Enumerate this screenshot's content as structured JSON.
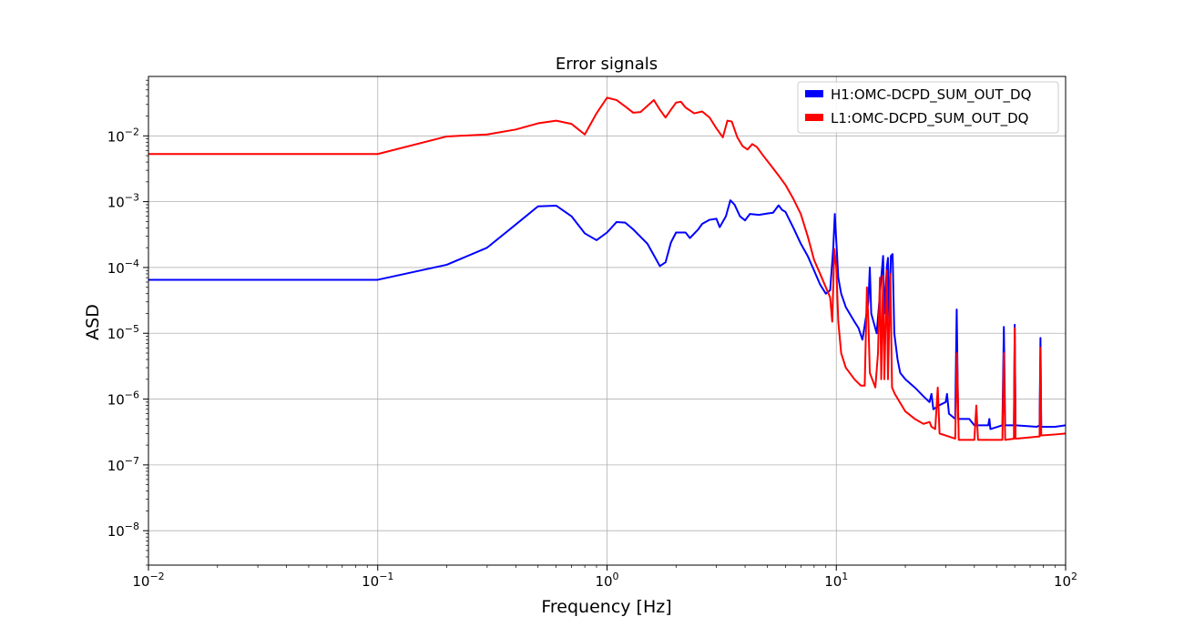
{
  "chart_data": {
    "type": "line",
    "title": "Error signals",
    "xlabel": "Frequency [Hz]",
    "ylabel": "ASD",
    "x_scale": "log",
    "y_scale": "log",
    "xlim": [
      0.01,
      100
    ],
    "ylim": [
      3e-09,
      0.08
    ],
    "grid": true,
    "legend_position": "top-right",
    "x_ticks": [
      {
        "value": 0.01,
        "base": "10",
        "exp": "−2"
      },
      {
        "value": 0.1,
        "base": "10",
        "exp": "−1"
      },
      {
        "value": 1,
        "base": "10",
        "exp": "0"
      },
      {
        "value": 10,
        "base": "10",
        "exp": "1"
      },
      {
        "value": 100,
        "base": "10",
        "exp": "2"
      }
    ],
    "y_ticks": [
      {
        "value": 1e-08,
        "base": "10",
        "exp": "−8"
      },
      {
        "value": 1e-07,
        "base": "10",
        "exp": "−7"
      },
      {
        "value": 1e-06,
        "base": "10",
        "exp": "−6"
      },
      {
        "value": 1e-05,
        "base": "10",
        "exp": "−5"
      },
      {
        "value": 0.0001,
        "base": "10",
        "exp": "−4"
      },
      {
        "value": 0.001,
        "base": "10",
        "exp": "−3"
      },
      {
        "value": 0.01,
        "base": "10",
        "exp": "−2"
      }
    ],
    "series": [
      {
        "name": "H1:OMC-DCPD_SUM_OUT_DQ",
        "color": "#0000ff",
        "points": [
          [
            0.01,
            6.5e-05
          ],
          [
            0.1,
            6.5e-05
          ],
          [
            0.2,
            0.00011
          ],
          [
            0.3,
            0.0002
          ],
          [
            0.4,
            0.00045
          ],
          [
            0.5,
            0.00085
          ],
          [
            0.6,
            0.00087
          ],
          [
            0.7,
            0.0006
          ],
          [
            0.8,
            0.00033
          ],
          [
            0.9,
            0.00026
          ],
          [
            1.0,
            0.00034
          ],
          [
            1.1,
            0.00049
          ],
          [
            1.2,
            0.00048
          ],
          [
            1.3,
            0.00038
          ],
          [
            1.5,
            0.00023
          ],
          [
            1.7,
            0.000105
          ],
          [
            1.8,
            0.00012
          ],
          [
            1.9,
            0.00024
          ],
          [
            2.0,
            0.00034
          ],
          [
            2.2,
            0.00034
          ],
          [
            2.3,
            0.00028
          ],
          [
            2.5,
            0.00038
          ],
          [
            2.6,
            0.00046
          ],
          [
            2.8,
            0.00053
          ],
          [
            3.0,
            0.00055
          ],
          [
            3.1,
            0.00041
          ],
          [
            3.3,
            0.0006
          ],
          [
            3.45,
            0.00105
          ],
          [
            3.6,
            0.0009
          ],
          [
            3.8,
            0.0006
          ],
          [
            4.0,
            0.00052
          ],
          [
            4.2,
            0.00065
          ],
          [
            4.6,
            0.00063
          ],
          [
            5.0,
            0.00066
          ],
          [
            5.3,
            0.00068
          ],
          [
            5.6,
            0.00088
          ],
          [
            5.8,
            0.00075
          ],
          [
            6.0,
            0.0007
          ],
          [
            6.5,
            0.0004
          ],
          [
            7.0,
            0.00023
          ],
          [
            7.5,
            0.00015
          ],
          [
            8.0,
            9e-05
          ],
          [
            8.5,
            5.5e-05
          ],
          [
            9.0,
            4e-05
          ],
          [
            9.4,
            4.5e-05
          ],
          [
            9.7,
            0.0002
          ],
          [
            9.85,
            0.00065
          ],
          [
            10.0,
            0.00025
          ],
          [
            10.2,
            7e-05
          ],
          [
            10.5,
            4e-05
          ],
          [
            11.0,
            2.5e-05
          ],
          [
            12.0,
            1.5e-05
          ],
          [
            12.5,
            1.2e-05
          ],
          [
            13.0,
            8e-06
          ],
          [
            13.8,
            3e-05
          ],
          [
            14.0,
            0.0001
          ],
          [
            14.2,
            2e-05
          ],
          [
            15.0,
            1e-05
          ],
          [
            15.8,
            9e-05
          ],
          [
            16.0,
            0.00015
          ],
          [
            16.2,
            2e-05
          ],
          [
            16.6,
            0.0001
          ],
          [
            16.8,
            0.00014
          ],
          [
            17.0,
            1.5e-05
          ],
          [
            17.3,
            0.00015
          ],
          [
            17.6,
            0.00016
          ],
          [
            17.9,
            1e-05
          ],
          [
            18.5,
            4e-06
          ],
          [
            19.0,
            2.5e-06
          ],
          [
            20.0,
            2e-06
          ],
          [
            22.0,
            1.5e-06
          ],
          [
            24.0,
            1.1e-06
          ],
          [
            25.5,
            9e-07
          ],
          [
            26.0,
            1.2e-06
          ],
          [
            26.5,
            7e-07
          ],
          [
            28.0,
            8e-07
          ],
          [
            30.0,
            9e-07
          ],
          [
            30.4,
            1.2e-06
          ],
          [
            31.0,
            6e-07
          ],
          [
            33.0,
            5e-07
          ],
          [
            33.5,
            2.3e-05
          ],
          [
            34.0,
            5e-07
          ],
          [
            38.0,
            5e-07
          ],
          [
            40.0,
            4e-07
          ],
          [
            46.0,
            4e-07
          ],
          [
            46.5,
            5e-07
          ],
          [
            47.0,
            3.5e-07
          ],
          [
            53.0,
            4e-07
          ],
          [
            53.8,
            1.25e-05
          ],
          [
            54.5,
            4e-07
          ],
          [
            59.5,
            4e-07
          ],
          [
            60.0,
            1.35e-05
          ],
          [
            60.5,
            4e-07
          ],
          [
            75.0,
            3.8e-07
          ],
          [
            77.0,
            4e-07
          ],
          [
            77.7,
            8.5e-06
          ],
          [
            78.3,
            3.8e-07
          ],
          [
            90.0,
            3.8e-07
          ],
          [
            100.0,
            4e-07
          ]
        ]
      },
      {
        "name": "L1:OMC-DCPD_SUM_OUT_DQ",
        "color": "#ff0000",
        "points": [
          [
            0.01,
            0.0053
          ],
          [
            0.1,
            0.0053
          ],
          [
            0.2,
            0.0098
          ],
          [
            0.3,
            0.0105
          ],
          [
            0.4,
            0.0125
          ],
          [
            0.5,
            0.0155
          ],
          [
            0.6,
            0.017
          ],
          [
            0.7,
            0.0152
          ],
          [
            0.8,
            0.0105
          ],
          [
            0.9,
            0.022
          ],
          [
            1.0,
            0.038
          ],
          [
            1.1,
            0.035
          ],
          [
            1.2,
            0.028
          ],
          [
            1.3,
            0.0225
          ],
          [
            1.4,
            0.023
          ],
          [
            1.6,
            0.035
          ],
          [
            1.7,
            0.025
          ],
          [
            1.8,
            0.019
          ],
          [
            1.9,
            0.025
          ],
          [
            2.0,
            0.032
          ],
          [
            2.1,
            0.033
          ],
          [
            2.2,
            0.027
          ],
          [
            2.4,
            0.022
          ],
          [
            2.6,
            0.0235
          ],
          [
            2.8,
            0.019
          ],
          [
            3.0,
            0.013
          ],
          [
            3.2,
            0.0095
          ],
          [
            3.35,
            0.017
          ],
          [
            3.5,
            0.0165
          ],
          [
            3.7,
            0.0095
          ],
          [
            3.9,
            0.007
          ],
          [
            4.1,
            0.0062
          ],
          [
            4.3,
            0.0075
          ],
          [
            4.5,
            0.0068
          ],
          [
            4.8,
            0.005
          ],
          [
            5.2,
            0.0035
          ],
          [
            5.6,
            0.0025
          ],
          [
            6.0,
            0.0018
          ],
          [
            6.5,
            0.0011
          ],
          [
            7.0,
            0.00065
          ],
          [
            7.5,
            0.0003
          ],
          [
            8.0,
            0.00013
          ],
          [
            8.5,
            8e-05
          ],
          [
            9.0,
            5e-05
          ],
          [
            9.4,
            3.5e-05
          ],
          [
            9.6,
            1.5e-05
          ],
          [
            9.8,
            0.00019
          ],
          [
            10.0,
            0.0001
          ],
          [
            10.2,
            1.5e-05
          ],
          [
            10.5,
            5e-06
          ],
          [
            11.0,
            3e-06
          ],
          [
            12.0,
            2e-06
          ],
          [
            12.8,
            1.6e-06
          ],
          [
            13.3,
            1.6e-06
          ],
          [
            13.6,
            5e-05
          ],
          [
            13.8,
            1.5e-05
          ],
          [
            14.0,
            2.5e-06
          ],
          [
            14.8,
            1.5e-06
          ],
          [
            15.2,
            5e-06
          ],
          [
            15.5,
            7e-05
          ],
          [
            15.7,
            2e-06
          ],
          [
            16.0,
            7.5e-05
          ],
          [
            16.2,
            2e-06
          ],
          [
            16.6,
            9e-05
          ],
          [
            16.8,
            2e-06
          ],
          [
            17.2,
            8e-05
          ],
          [
            17.5,
            1.5e-06
          ],
          [
            18.0,
            1.2e-06
          ],
          [
            20.0,
            6.5e-07
          ],
          [
            22.0,
            5e-07
          ],
          [
            24.0,
            4.2e-07
          ],
          [
            25.5,
            4.5e-07
          ],
          [
            26.0,
            3.8e-07
          ],
          [
            27.0,
            3.5e-07
          ],
          [
            27.7,
            1.5e-06
          ],
          [
            28.2,
            3e-07
          ],
          [
            30.0,
            2.8e-07
          ],
          [
            33.0,
            2.5e-07
          ],
          [
            33.6,
            5e-06
          ],
          [
            34.2,
            2.4e-07
          ],
          [
            40.0,
            2.4e-07
          ],
          [
            40.8,
            8e-07
          ],
          [
            41.5,
            2.4e-07
          ],
          [
            53.0,
            2.4e-07
          ],
          [
            53.8,
            5e-06
          ],
          [
            54.5,
            2.4e-07
          ],
          [
            59.5,
            2.5e-07
          ],
          [
            60.0,
            1.2e-05
          ],
          [
            60.5,
            2.5e-07
          ],
          [
            77.0,
            2.7e-07
          ],
          [
            77.7,
            6e-06
          ],
          [
            78.3,
            2.8e-07
          ],
          [
            90.0,
            2.9e-07
          ],
          [
            100.0,
            3e-07
          ]
        ]
      }
    ]
  }
}
